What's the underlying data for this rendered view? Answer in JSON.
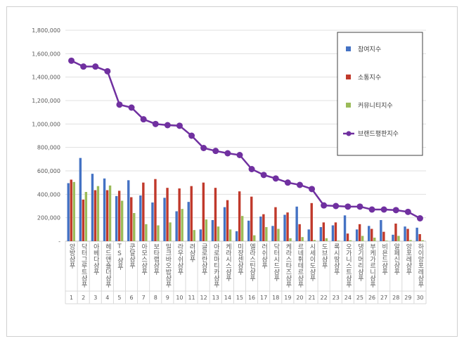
{
  "chart_data": {
    "type": "bar",
    "title": "",
    "xlabel": "",
    "ylabel": "",
    "ylim": [
      0,
      1800000
    ],
    "yticks": [
      "-",
      "200,000",
      "400,000",
      "600,000",
      "800,000",
      "1,000,000",
      "1,200,000",
      "1,400,000",
      "1,600,000",
      "1,800,000"
    ],
    "grid": true,
    "legend_position": "top-right",
    "categories": [
      "앙방샴푸",
      "닥터그루트샴푸",
      "아베다샴푸",
      "헤드앤숄더샴푸",
      "TS샴푸",
      "쿤달샴푸",
      "아모스샴푸",
      "보타랩샴푸",
      "밀크바오밥샴푸",
      "라우쉬샴푸",
      "려샴푸",
      "글로란샴푸",
      "아로마티카샴푸",
      "케라시스샴푸",
      "미쟝센샴푸",
      "엘라스틴샴푸",
      "러쉬샴푸",
      "닥터시드샴푸",
      "케라스타즈샴푸",
      "르네휘테르샴푸",
      "시세이도샴푸",
      "도브샴푸",
      "록시땅샴푸",
      "오가니스트샴푸",
      "댕기머리샴푸",
      "부케가르니샴푸",
      "비욘드샴푸",
      "알페신샴푸",
      "앙포레샴푸",
      "하이앙포레샴푸"
    ],
    "ranks": [
      "1",
      "2",
      "3",
      "4",
      "5",
      "6",
      "7",
      "8",
      "9",
      "10",
      "11",
      "12",
      "13",
      "14",
      "15",
      "16",
      "17",
      "18",
      "19",
      "20",
      "21",
      "22",
      "23",
      "24",
      "25",
      "26",
      "27",
      "28",
      "29",
      "30"
    ],
    "series": [
      {
        "name": "참여지수",
        "kind": "bar",
        "color": "#4472c4",
        "values": [
          495000,
          710000,
          575000,
          535000,
          385000,
          520000,
          390000,
          330000,
          370000,
          255000,
          335000,
          100000,
          180000,
          290000,
          85000,
          175000,
          210000,
          130000,
          225000,
          295000,
          100000,
          120000,
          135000,
          220000,
          100000,
          130000,
          180000,
          55000,
          125000,
          115000
        ]
      },
      {
        "name": "소통지수",
        "kind": "bar",
        "color": "#c0392b",
        "values": [
          525000,
          355000,
          435000,
          435000,
          430000,
          375000,
          500000,
          530000,
          455000,
          450000,
          470000,
          500000,
          455000,
          350000,
          425000,
          380000,
          230000,
          290000,
          245000,
          145000,
          325000,
          160000,
          160000,
          65000,
          145000,
          105000,
          80000,
          150000,
          105000,
          60000
        ]
      },
      {
        "name": "커뮤니티지수",
        "kind": "bar",
        "color": "#9bbb59",
        "values": [
          505000,
          420000,
          470000,
          475000,
          345000,
          240000,
          145000,
          135000,
          160000,
          275000,
          95000,
          185000,
          125000,
          100000,
          215000,
          50000,
          120000,
          105000,
          25000,
          35000,
          10000,
          25000,
          5000,
          8000,
          45000,
          30000,
          5000,
          45000,
          10000,
          8000
        ]
      },
      {
        "name": "브랜드평판지수",
        "kind": "line",
        "color": "#7030a0",
        "values": [
          1540000,
          1490000,
          1490000,
          1450000,
          1165000,
          1140000,
          1040000,
          1000000,
          990000,
          985000,
          900000,
          795000,
          770000,
          750000,
          735000,
          615000,
          565000,
          535000,
          500000,
          480000,
          445000,
          305000,
          300000,
          295000,
          295000,
          270000,
          270000,
          265000,
          250000,
          195000
        ]
      }
    ]
  }
}
